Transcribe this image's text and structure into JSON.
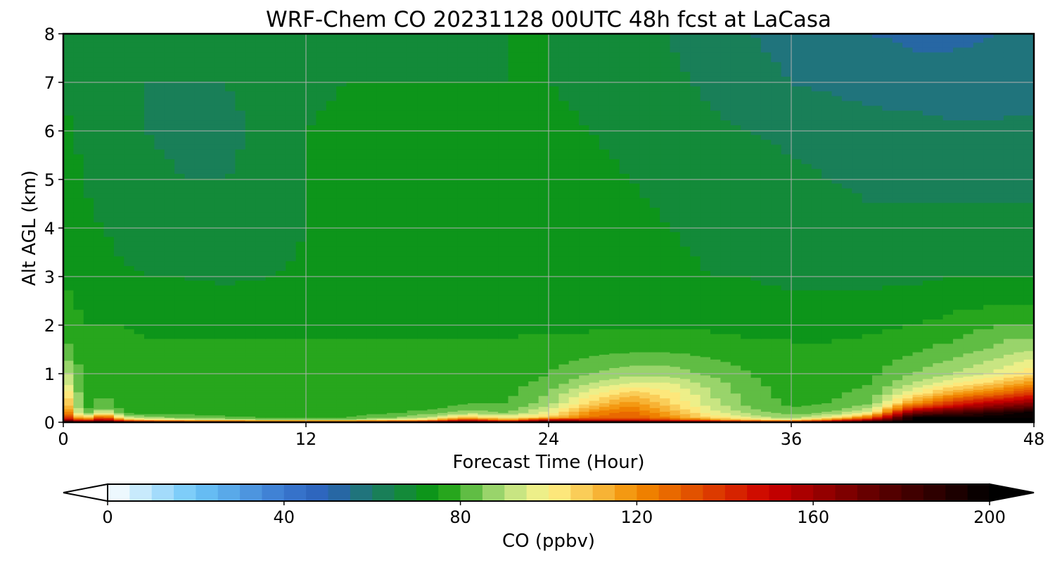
{
  "chart_data": {
    "type": "heatmap",
    "title": "WRF-Chem CO  20231128 00UTC 48h fcst at LaCasa",
    "xlabel": "Forecast Time (Hour)",
    "ylabel": "Alt AGL (km)",
    "xlim": [
      0,
      48
    ],
    "ylim": [
      0,
      8
    ],
    "x_ticks": [
      "0",
      "12",
      "24",
      "36",
      "48"
    ],
    "y_ticks": [
      "0",
      "1",
      "2",
      "3",
      "4",
      "5",
      "6",
      "7",
      "8"
    ],
    "grid": true,
    "colorbar": {
      "label": "CO  (ppbv)",
      "range": [
        0,
        200
      ],
      "step": 5,
      "extend": "both",
      "ticks": [
        "0",
        "40",
        "80",
        "120",
        "160",
        "200"
      ],
      "colors": [
        {
          "v": 0,
          "c": "#ffffff"
        },
        {
          "v": 20,
          "c": "#6cc6f8"
        },
        {
          "v": 40,
          "c": "#3a78d0"
        },
        {
          "v": 50,
          "c": "#2a60b8"
        },
        {
          "v": 60,
          "c": "#1c7a68"
        },
        {
          "v": 75,
          "c": "#0a9a0a"
        },
        {
          "v": 90,
          "c": "#b6e07e"
        },
        {
          "v": 100,
          "c": "#fff48c"
        },
        {
          "v": 120,
          "c": "#f28c00"
        },
        {
          "v": 150,
          "c": "#cc0000"
        },
        {
          "v": 175,
          "c": "#5c0000"
        },
        {
          "v": 200,
          "c": "#000000"
        }
      ]
    },
    "field": {
      "note_units": "ppbv",
      "x": [
        0,
        1,
        2,
        3,
        4,
        6,
        8,
        10,
        12,
        14,
        16,
        18,
        20,
        22,
        24,
        26,
        28,
        30,
        32,
        34,
        36,
        38,
        40,
        42,
        44,
        46,
        48
      ],
      "y": [
        0,
        0.05,
        0.1,
        0.2,
        0.3,
        0.4,
        0.6,
        0.8,
        1,
        1.5,
        2,
        2.5,
        3,
        4,
        5,
        6,
        7,
        8
      ],
      "z": [
        [
          200,
          200,
          200,
          200,
          200,
          200,
          200,
          200,
          200,
          200,
          200,
          200,
          200,
          200,
          200,
          200,
          200,
          200,
          200,
          200,
          200,
          200,
          200,
          200,
          200,
          200,
          200
        ],
        [
          175,
          135,
          165,
          120,
          110,
          100,
          95,
          92,
          90,
          92,
          100,
          110,
          150,
          120,
          160,
          150,
          150,
          140,
          125,
          110,
          100,
          130,
          165,
          200,
          200,
          200,
          200
        ],
        [
          150,
          100,
          140,
          95,
          88,
          84,
          82,
          80,
          80,
          80,
          84,
          92,
          110,
          100,
          110,
          125,
          130,
          120,
          105,
          95,
          88,
          100,
          130,
          200,
          200,
          200,
          200
        ],
        [
          135,
          80,
          100,
          80,
          78,
          78,
          77,
          77,
          77,
          78,
          79,
          82,
          88,
          85,
          98,
          120,
          128,
          115,
          98,
          88,
          82,
          86,
          100,
          170,
          180,
          190,
          200
        ],
        [
          125,
          78,
          84,
          78,
          77,
          77,
          77,
          77,
          77,
          77,
          78,
          79,
          82,
          82,
          92,
          112,
          122,
          110,
          95,
          85,
          80,
          82,
          90,
          140,
          160,
          170,
          180
        ],
        [
          118,
          77,
          82,
          77,
          77,
          77,
          77,
          77,
          77,
          77,
          77,
          78,
          80,
          80,
          88,
          105,
          118,
          106,
          92,
          83,
          79,
          80,
          85,
          118,
          140,
          155,
          165
        ],
        [
          110,
          77,
          80,
          77,
          77,
          77,
          77,
          77,
          77,
          77,
          77,
          77,
          79,
          79,
          85,
          98,
          108,
          102,
          90,
          82,
          78,
          79,
          82,
          100,
          115,
          125,
          140
        ],
        [
          100,
          77,
          78,
          77,
          77,
          77,
          77,
          77,
          77,
          77,
          77,
          77,
          78,
          78,
          82,
          90,
          96,
          96,
          88,
          81,
          78,
          78,
          80,
          90,
          100,
          108,
          120
        ],
        [
          95,
          77,
          77,
          77,
          77,
          77,
          77,
          77,
          77,
          77,
          77,
          77,
          77,
          77,
          80,
          85,
          88,
          88,
          84,
          80,
          77,
          77,
          79,
          85,
          90,
          96,
          105
        ],
        [
          82,
          76,
          76,
          76,
          76,
          76,
          76,
          76,
          76,
          76,
          76,
          76,
          76,
          76,
          77,
          78,
          79,
          79,
          78,
          77,
          76,
          76,
          77,
          79,
          82,
          86,
          90
        ],
        [
          78,
          75,
          75,
          75,
          74,
          74,
          74,
          74,
          74,
          74,
          74,
          74,
          74,
          74,
          74,
          74,
          74,
          74,
          74,
          73,
          73,
          73,
          74,
          75,
          77,
          80,
          81
        ],
        [
          76,
          74,
          73,
          73,
          72,
          72,
          72,
          72,
          72,
          72,
          72,
          72,
          72,
          72,
          72,
          72,
          72,
          72,
          72,
          71,
          71,
          71,
          71,
          72,
          73,
          74,
          74
        ],
        [
          75,
          73,
          72,
          71,
          70,
          70,
          69,
          70,
          71,
          71,
          71,
          71,
          71,
          71,
          71,
          71,
          71,
          71,
          70,
          70,
          69,
          69,
          69,
          69,
          70,
          70,
          70
        ],
        [
          73,
          71,
          70,
          68,
          67,
          66,
          66,
          67,
          70,
          71,
          71,
          71,
          71,
          71,
          71,
          71,
          71,
          70,
          69,
          68,
          67,
          67,
          66,
          66,
          66,
          66,
          66
        ],
        [
          72,
          70,
          68,
          67,
          66,
          65,
          65,
          66,
          70,
          71,
          71,
          71,
          71,
          71,
          71,
          71,
          70,
          69,
          68,
          67,
          66,
          65,
          64,
          64,
          64,
          64,
          64
        ],
        [
          71,
          69,
          67,
          66,
          65,
          64,
          64,
          66,
          70,
          71,
          71,
          71,
          71,
          71,
          71,
          70,
          69,
          68,
          66,
          65,
          64,
          63,
          62,
          62,
          61,
          61,
          61
        ],
        [
          69,
          68,
          67,
          66,
          65,
          65,
          65,
          66,
          69,
          70,
          70,
          70,
          70,
          70,
          70,
          69,
          68,
          66,
          64,
          62,
          60,
          59,
          58,
          57,
          57,
          57,
          58
        ],
        [
          68,
          67,
          67,
          66,
          66,
          66,
          67,
          68,
          69,
          69,
          69,
          69,
          69,
          70,
          70,
          68,
          67,
          65,
          62,
          60,
          58,
          56,
          55,
          54,
          54,
          55,
          56
        ]
      ]
    }
  }
}
